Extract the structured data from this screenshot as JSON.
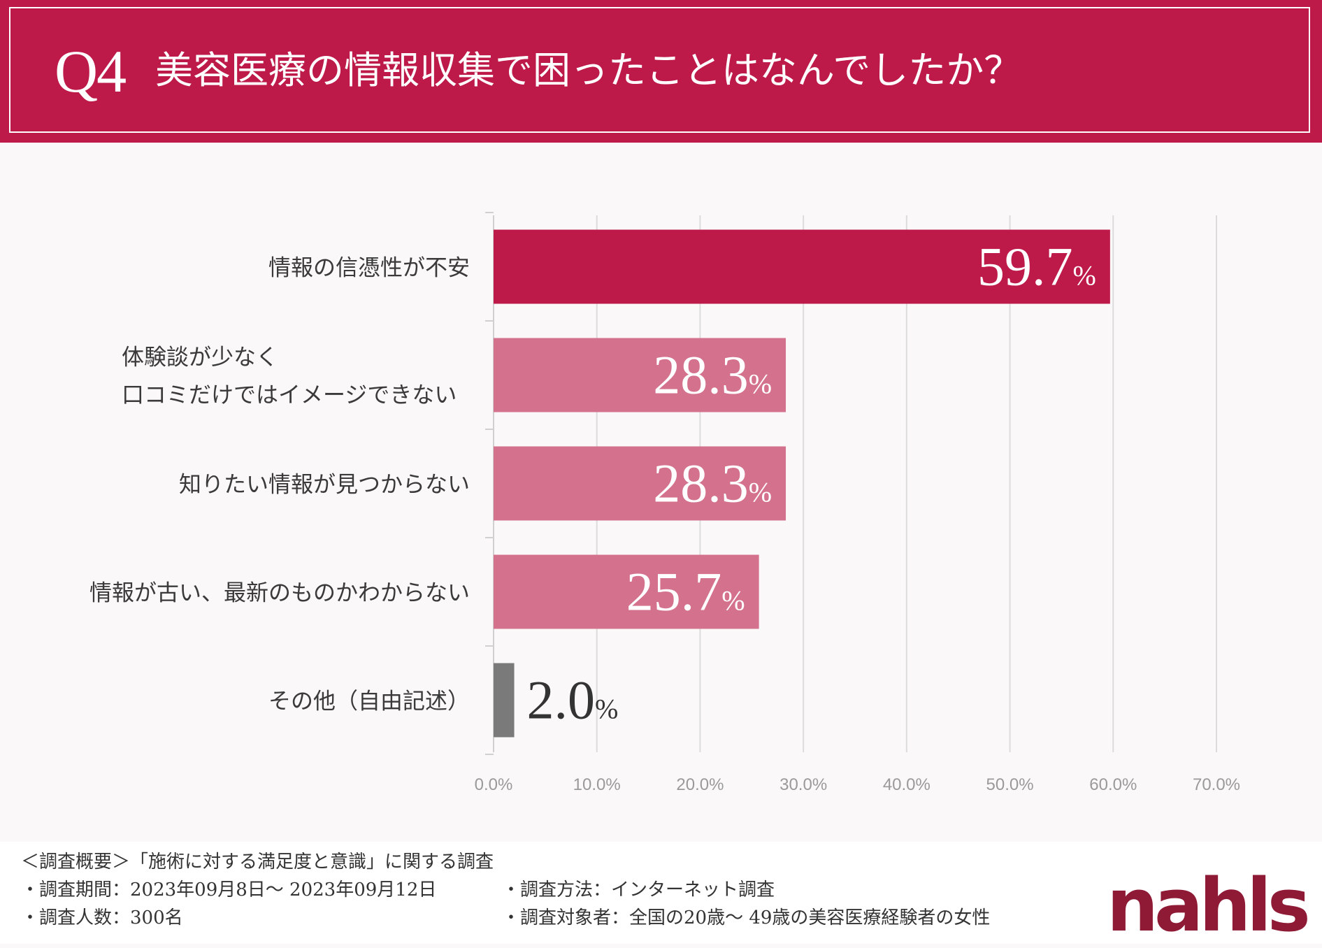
{
  "header": {
    "q_number": "Q4",
    "title": "美容医療の情報収集で困ったことはなんでしたか？"
  },
  "colors": {
    "header_bg": "#bd1a4a",
    "bar_primary": "#bd1a4a",
    "bar_secondary": "#d4728e",
    "bar_other": "#7a7a7a",
    "gridline": "#dcdcdc"
  },
  "chart_data": {
    "type": "bar",
    "orientation": "horizontal",
    "categories": [
      "情報の信憑性が不安",
      "体験談が少なく\n口コミだけではイメージできない",
      "知りたい情報が見つからない",
      "情報が古い、最新のものかわからない",
      "その他（自由記述）"
    ],
    "values": [
      59.7,
      28.3,
      28.3,
      25.7,
      2.0
    ],
    "value_labels": [
      "59.7",
      "28.3",
      "28.3",
      "25.7",
      "2.0"
    ],
    "value_unit": "%",
    "xlim": [
      0,
      70
    ],
    "xticks": [
      "0.0%",
      "10.0%",
      "20.0%",
      "30.0%",
      "40.0%",
      "50.0%",
      "60.0%",
      "70.0%"
    ],
    "grid": true,
    "title": "",
    "xlabel": "",
    "ylabel": ""
  },
  "footer": {
    "overview": "＜調査概要＞「施術に対する満足度と意識」に関する調査",
    "period": "・調査期間：2023年09月8日〜 2023年09月12日",
    "method": "・調査方法：インターネット調査",
    "count": "・調査人数：300名",
    "target": "・調査対象者：全国の20歳〜 49歳の美容医療経験者の女性"
  },
  "logo": {
    "text": "nahls"
  }
}
